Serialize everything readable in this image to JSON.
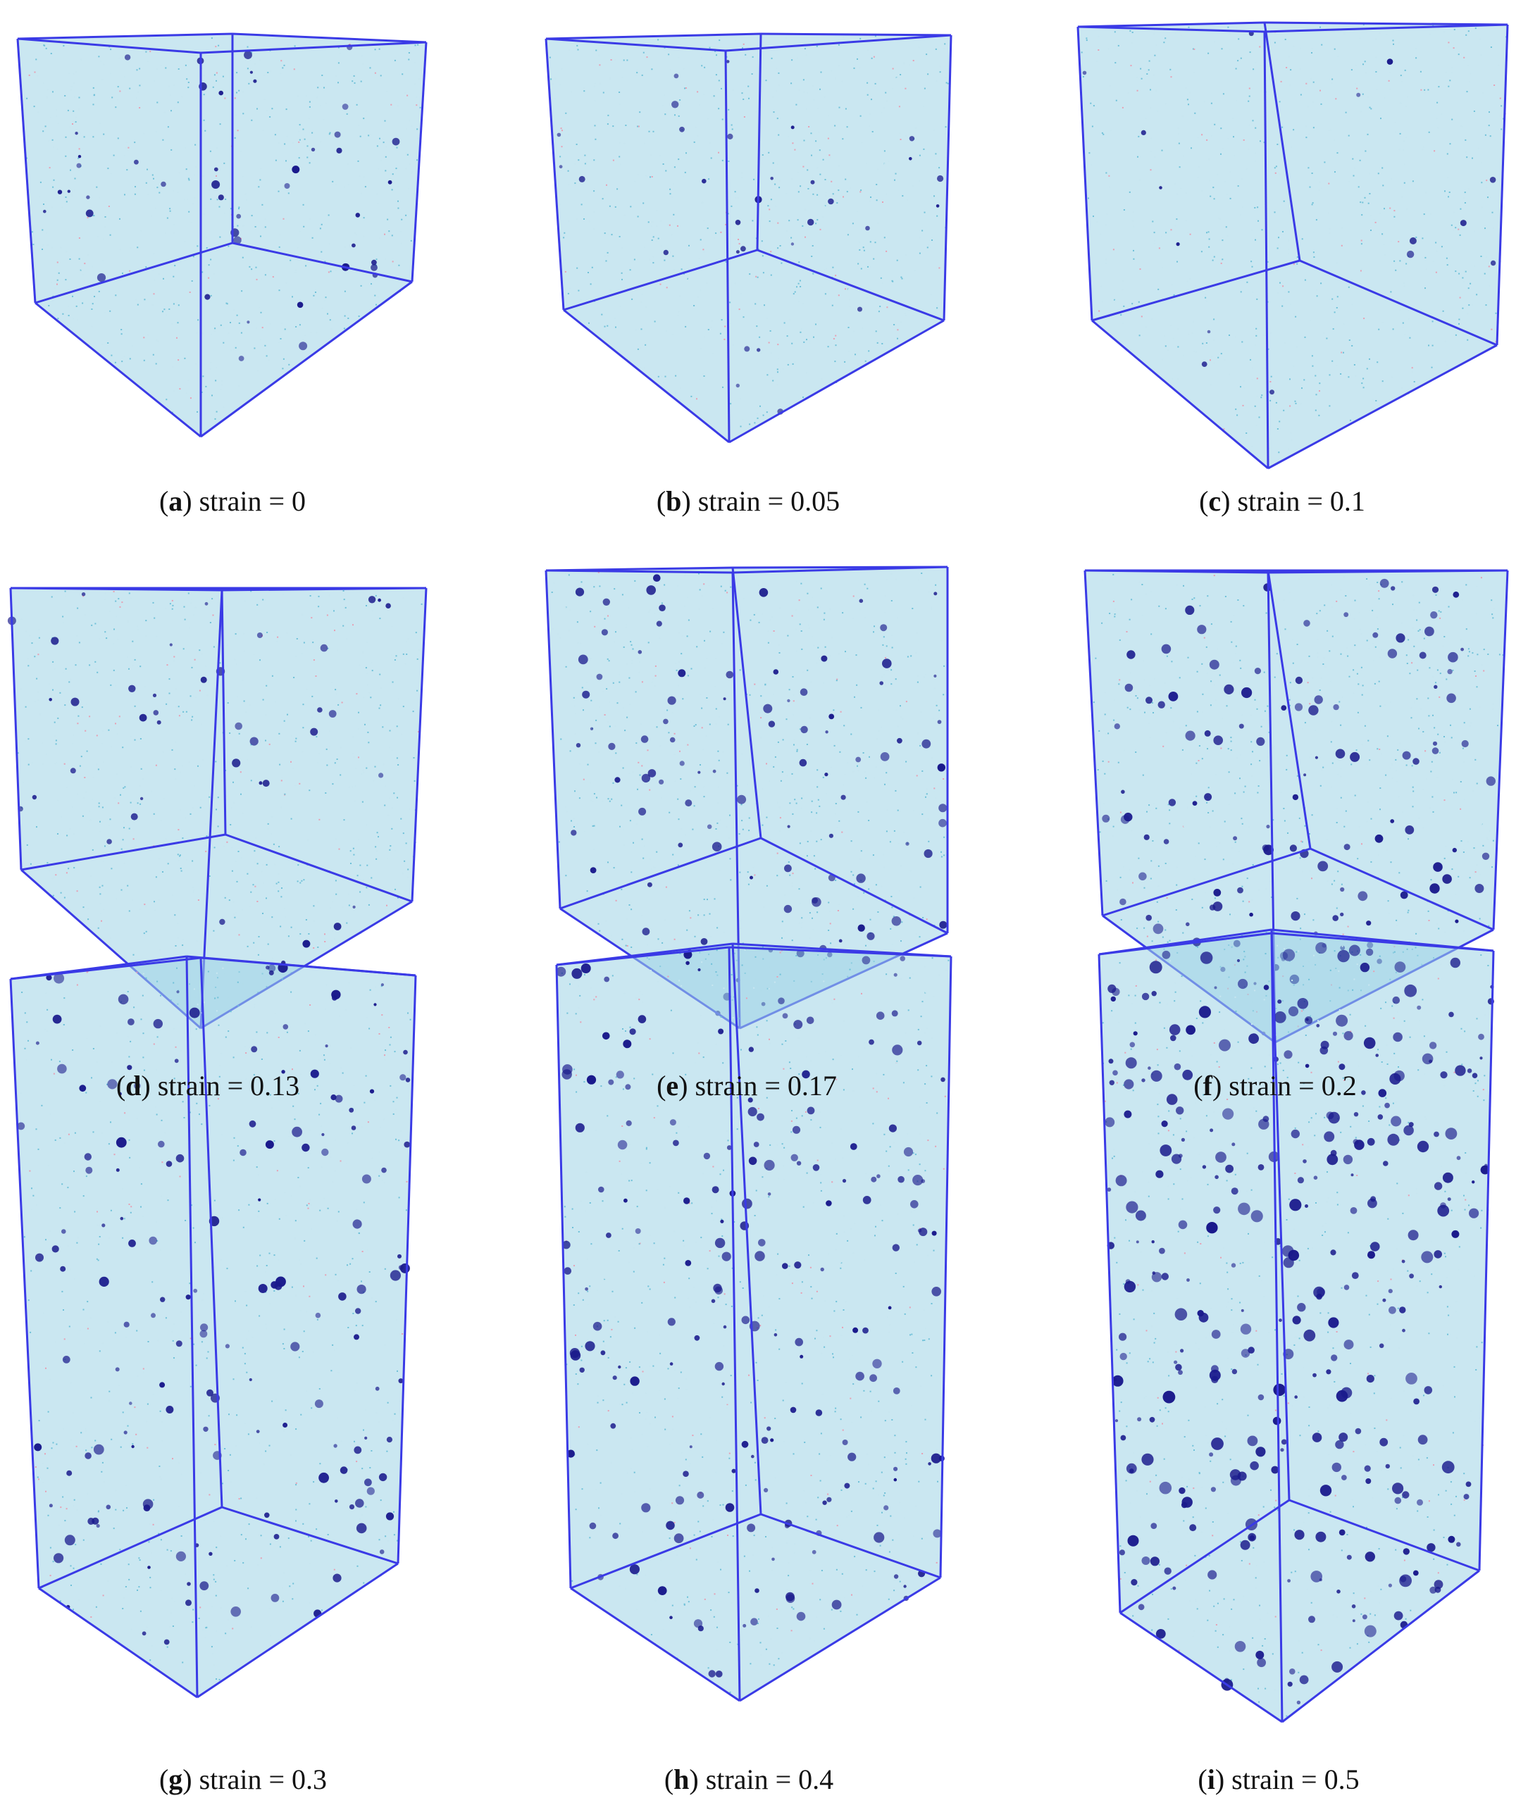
{
  "figure": {
    "panels": [
      {
        "letter": "a",
        "rest": "strain = 0"
      },
      {
        "letter": "b",
        "rest": "strain = 0.05"
      },
      {
        "letter": "c",
        "rest": "strain = 0.1"
      },
      {
        "letter": "d",
        "rest": "strain = 0.13"
      },
      {
        "letter": "e",
        "rest": "strain = 0.17"
      },
      {
        "letter": "f",
        "rest": "strain = 0.2"
      },
      {
        "letter": "g",
        "rest": "strain = 0.3"
      },
      {
        "letter": "h",
        "rest": "strain = 0.4"
      },
      {
        "letter": "i",
        "rest": "strain = 0.5"
      }
    ],
    "colors": {
      "box_edge": "#3a3ae6",
      "background_cloud": "#9fd3e6",
      "void": "#1a1a8c"
    }
  }
}
